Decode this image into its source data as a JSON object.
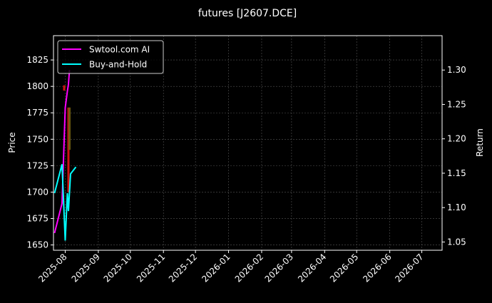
{
  "chart_data": {
    "type": "line",
    "title": "futures [J2607.DCE]",
    "ylabel_left": "Price",
    "ylabel_right": "Return",
    "xlim": [
      "2025-07-21",
      "2026-07-20"
    ],
    "ylim_left": [
      1645,
      1848
    ],
    "ylim_right": [
      1.038,
      1.35
    ],
    "x_ticks": [
      "2025-08",
      "2025-09",
      "2025-10",
      "2025-11",
      "2025-12",
      "2026-01",
      "2026-02",
      "2026-03",
      "2026-04",
      "2026-05",
      "2026-06",
      "2026-07"
    ],
    "y_ticks_left": [
      1650,
      1675,
      1700,
      1725,
      1750,
      1775,
      1800,
      1825
    ],
    "y_ticks_right": [
      "1.05",
      "1.10",
      "1.15",
      "1.20",
      "1.25",
      "1.30"
    ],
    "grid": true,
    "legend_position": "top-left",
    "background": "#000000",
    "series": [
      {
        "name": "Swtool.com AI",
        "axis": "right",
        "color": "#ff00ff",
        "x": [
          "2025-07-22",
          "2025-07-29",
          "2025-08-01",
          "2025-08-03",
          "2025-08-04",
          "2025-08-05"
        ],
        "values": [
          1.063,
          1.106,
          1.245,
          1.269,
          1.279,
          1.3
        ]
      },
      {
        "name": "Buy-and-Hold",
        "axis": "right",
        "color": "#00ffff",
        "x": [
          "2025-07-22",
          "2025-07-29",
          "2025-08-01",
          "2025-08-03",
          "2025-08-04",
          "2025-08-06",
          "2025-08-11"
        ],
        "values": [
          1.121,
          1.163,
          1.052,
          1.121,
          1.095,
          1.149,
          1.159
        ]
      }
    ],
    "candles": [
      {
        "x": "2025-07-31",
        "open": 1801,
        "close": 1796,
        "color": "#d01010"
      },
      {
        "x": "2025-08-04",
        "open": 1780,
        "close": 1700,
        "color": "#d01010"
      },
      {
        "x": "2025-08-05",
        "open": 1780,
        "close": 1740,
        "color": "#6b5a10"
      }
    ]
  }
}
